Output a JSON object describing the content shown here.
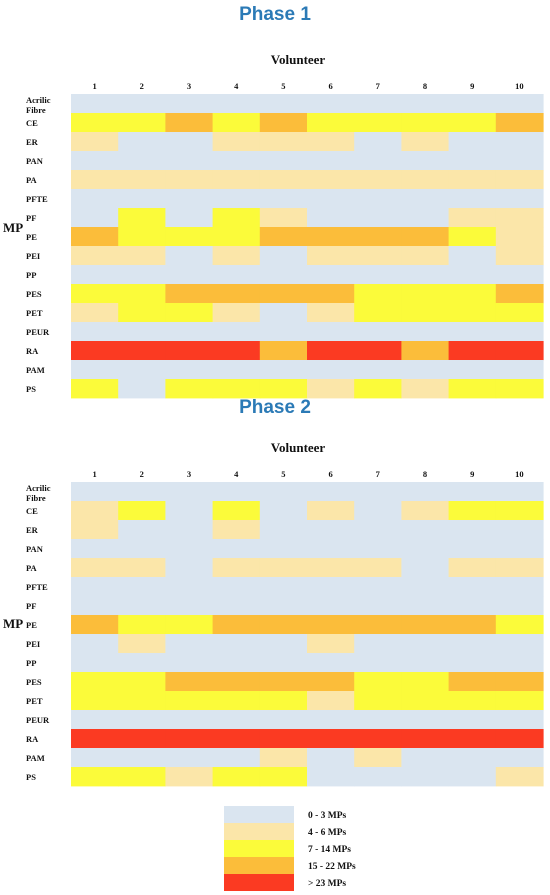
{
  "legend": [
    {
      "label": "0  - 3 MPs",
      "color": "#dae5f0"
    },
    {
      "label": "4 - 6 MPs",
      "color": "#fbe6a9"
    },
    {
      "label": "7 - 14  MPs",
      "color": "#fbfb3a"
    },
    {
      "label": "15 - 22 MPs",
      "color": "#fbbd3a"
    },
    {
      "label": "> 23 MPs",
      "color": "#fb3a22"
    }
  ],
  "chart_data": [
    {
      "type": "heatmap",
      "title": "Phase 1",
      "xlabel": "Volunteer",
      "ylabel": "MP",
      "columns": [
        "1",
        "2",
        "3",
        "4",
        "5",
        "6",
        "7",
        "8",
        "9",
        "10"
      ],
      "rows": [
        "Acrilic Fibre",
        "CE",
        "ER",
        "PAN",
        "PA",
        "PFTE",
        "PF",
        "PE",
        "PEI",
        "PP",
        "PES",
        "PET",
        "PEUR",
        "RA",
        "PAM",
        "PS"
      ],
      "level_scale": [
        "0 - 3 MPs",
        "4 - 6 MPs",
        "7 - 14 MPs",
        "15 - 22 MPs",
        "> 23 MPs"
      ],
      "values": [
        [
          0,
          0,
          0,
          0,
          0,
          0,
          0,
          0,
          0,
          0
        ],
        [
          2,
          2,
          3,
          2,
          3,
          2,
          2,
          2,
          2,
          3
        ],
        [
          1,
          0,
          0,
          1,
          1,
          1,
          0,
          1,
          0,
          0
        ],
        [
          0,
          0,
          0,
          0,
          0,
          0,
          0,
          0,
          0,
          0
        ],
        [
          1,
          1,
          1,
          1,
          1,
          1,
          1,
          1,
          1,
          1
        ],
        [
          0,
          0,
          0,
          0,
          0,
          0,
          0,
          0,
          0,
          0
        ],
        [
          0,
          2,
          0,
          2,
          1,
          0,
          0,
          0,
          1,
          1
        ],
        [
          3,
          2,
          2,
          2,
          3,
          3,
          3,
          3,
          2,
          1
        ],
        [
          1,
          1,
          0,
          1,
          0,
          1,
          1,
          1,
          0,
          1
        ],
        [
          0,
          0,
          0,
          0,
          0,
          0,
          0,
          0,
          0,
          0
        ],
        [
          2,
          2,
          3,
          3,
          3,
          3,
          2,
          2,
          2,
          3
        ],
        [
          1,
          2,
          2,
          1,
          0,
          1,
          2,
          2,
          2,
          2
        ],
        [
          0,
          0,
          0,
          0,
          0,
          0,
          0,
          0,
          0,
          0
        ],
        [
          4,
          4,
          4,
          4,
          3,
          4,
          4,
          3,
          4,
          4
        ],
        [
          0,
          0,
          0,
          0,
          0,
          0,
          0,
          0,
          0,
          0
        ],
        [
          2,
          0,
          2,
          2,
          2,
          1,
          2,
          1,
          2,
          2
        ]
      ]
    },
    {
      "type": "heatmap",
      "title": "Phase 2",
      "xlabel": "Volunteer",
      "ylabel": "MP",
      "columns": [
        "1",
        "2",
        "3",
        "4",
        "5",
        "6",
        "7",
        "8",
        "9",
        "10"
      ],
      "rows": [
        "Acrilic Fibre",
        "CE",
        "ER",
        "PAN",
        "PA",
        "PFTE",
        "PF",
        "PE",
        "PEI",
        "PP",
        "PES",
        "PET",
        "PEUR",
        "RA",
        "PAM",
        "PS"
      ],
      "level_scale": [
        "0 - 3 MPs",
        "4 - 6 MPs",
        "7 - 14 MPs",
        "15 - 22 MPs",
        "> 23 MPs"
      ],
      "values": [
        [
          0,
          0,
          0,
          0,
          0,
          0,
          0,
          0,
          0,
          0
        ],
        [
          1,
          2,
          0,
          2,
          0,
          1,
          0,
          1,
          2,
          2
        ],
        [
          1,
          0,
          0,
          1,
          0,
          0,
          0,
          0,
          0,
          0
        ],
        [
          0,
          0,
          0,
          0,
          0,
          0,
          0,
          0,
          0,
          0
        ],
        [
          1,
          1,
          0,
          1,
          1,
          1,
          1,
          0,
          1,
          1
        ],
        [
          0,
          0,
          0,
          0,
          0,
          0,
          0,
          0,
          0,
          0
        ],
        [
          0,
          0,
          0,
          0,
          0,
          0,
          0,
          0,
          0,
          0
        ],
        [
          3,
          2,
          2,
          3,
          3,
          3,
          3,
          3,
          3,
          2
        ],
        [
          0,
          1,
          0,
          0,
          0,
          1,
          0,
          0,
          0,
          0
        ],
        [
          0,
          0,
          0,
          0,
          0,
          0,
          0,
          0,
          0,
          0
        ],
        [
          2,
          2,
          3,
          3,
          3,
          3,
          2,
          2,
          3,
          3
        ],
        [
          2,
          2,
          2,
          2,
          2,
          1,
          2,
          2,
          2,
          2
        ],
        [
          0,
          0,
          0,
          0,
          0,
          0,
          0,
          0,
          0,
          0
        ],
        [
          4,
          4,
          4,
          4,
          4,
          4,
          4,
          4,
          4,
          4
        ],
        [
          0,
          0,
          0,
          0,
          1,
          0,
          1,
          0,
          0,
          0
        ],
        [
          2,
          2,
          1,
          2,
          2,
          0,
          0,
          0,
          0,
          1
        ]
      ]
    }
  ]
}
